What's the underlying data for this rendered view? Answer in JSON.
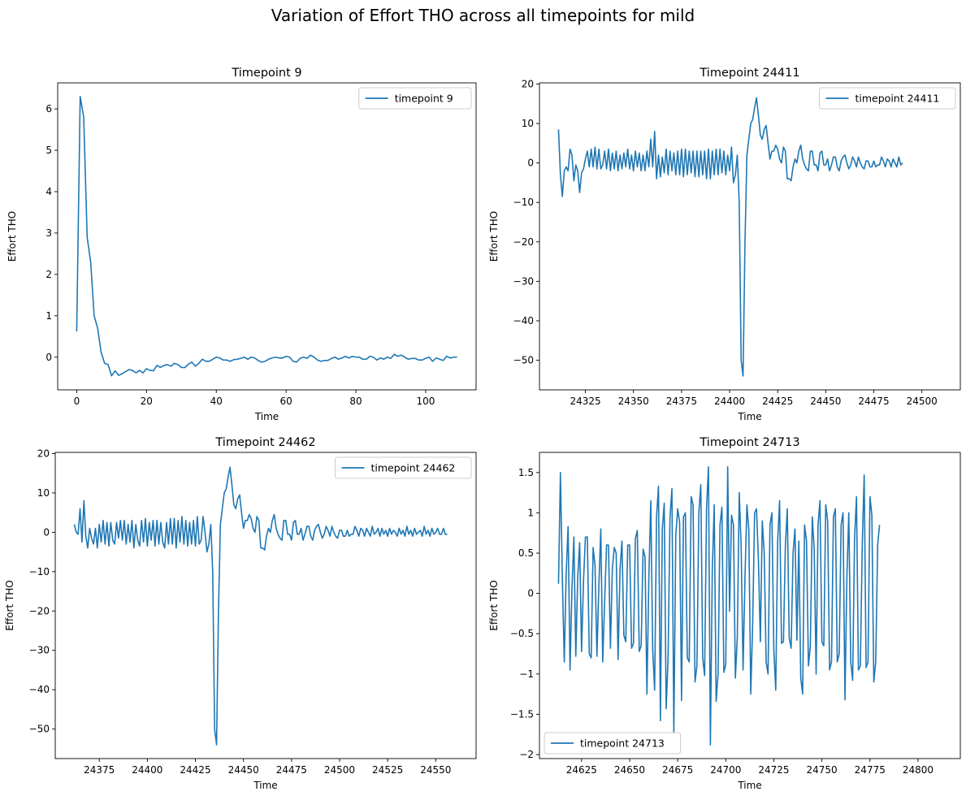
{
  "figure": {
    "title": "Variation of Effort THO across all timepoints for mild",
    "line_color": "#1f77b4"
  },
  "chart_data": [
    {
      "type": "line",
      "title": "Timepoint 9",
      "xlabel": "Time",
      "ylabel": "Effort THO",
      "legend": "upper right",
      "xlim": [
        -5.45,
        114.45
      ],
      "ylim": [
        -0.79,
        6.63
      ],
      "xticks": [
        0,
        20,
        40,
        60,
        80,
        100
      ],
      "yticks": [
        0,
        1,
        2,
        3,
        4,
        5,
        6
      ],
      "grid": false,
      "series": [
        {
          "name": "timepoint 9",
          "x_start": 0,
          "x_step": 1,
          "values": [
            0.62,
            6.3,
            5.8,
            2.9,
            2.3,
            1.0,
            0.7,
            0.12,
            -0.15,
            -0.18,
            -0.45,
            -0.33,
            -0.44,
            -0.4,
            -0.35,
            -0.3,
            -0.32,
            -0.38,
            -0.32,
            -0.38,
            -0.28,
            -0.32,
            -0.33,
            -0.2,
            -0.25,
            -0.2,
            -0.18,
            -0.22,
            -0.15,
            -0.18,
            -0.25,
            -0.25,
            -0.17,
            -0.12,
            -0.22,
            -0.15,
            -0.05,
            -0.1,
            -0.1,
            -0.05,
            0.0,
            -0.02,
            -0.07,
            -0.07,
            -0.1,
            -0.06,
            -0.05,
            -0.03,
            0.0,
            -0.05,
            0.0,
            -0.02,
            -0.08,
            -0.12,
            -0.1,
            -0.05,
            -0.02,
            0.0,
            -0.02,
            -0.02,
            0.02,
            0.0,
            -0.1,
            -0.12,
            -0.03,
            0.0,
            -0.03,
            0.05,
            0.0,
            -0.07,
            -0.1,
            -0.08,
            -0.08,
            -0.03,
            0.0,
            -0.05,
            -0.02,
            0.02,
            -0.02,
            0.02,
            0.0,
            0.0,
            -0.05,
            -0.05,
            0.02,
            0.0,
            -0.07,
            -0.02,
            -0.05,
            0.0,
            -0.03,
            0.07,
            0.02,
            0.05,
            0.0,
            -0.05,
            -0.03,
            -0.03,
            -0.07,
            -0.07,
            -0.03,
            0.0,
            -0.1,
            -0.02,
            -0.05,
            -0.08,
            0.02,
            -0.02,
            0.0,
            0.0
          ]
        }
      ]
    },
    {
      "type": "line",
      "title": "Timepoint 24411",
      "xlabel": "Time",
      "ylabel": "Effort THO",
      "legend": "upper right",
      "xlim": [
        24301.1,
        24520.0
      ],
      "ylim": [
        -57.5,
        20.3
      ],
      "xticks": [
        24325,
        24350,
        24375,
        24400,
        24425,
        24450,
        24475,
        24500
      ],
      "yticks": [
        -50,
        -40,
        -30,
        -20,
        -10,
        0,
        10,
        20
      ],
      "grid": false,
      "series": [
        {
          "name": "timepoint 24411",
          "x_start": 24311,
          "x_step": 1,
          "values": [
            8.5,
            -3,
            -8.5,
            -2,
            -1,
            -2,
            3.5,
            2,
            -4.5,
            -0.5,
            -2,
            -7.5,
            -2.5,
            -1.5,
            1,
            3,
            -1,
            3.5,
            -1,
            4,
            -1.5,
            3.5,
            -1.5,
            -0.5,
            3,
            -1.5,
            3.5,
            -2,
            2.5,
            -1.5,
            3,
            -2,
            2,
            -1.5,
            2.5,
            -1,
            3.5,
            -1.5,
            2,
            -2,
            3,
            -1,
            2.5,
            -2,
            2,
            -2,
            3,
            -1,
            6,
            -1,
            8,
            -4,
            2,
            -3.5,
            1.5,
            -2.5,
            3.5,
            -3,
            3,
            -2,
            2.5,
            -3,
            3,
            -3,
            3.5,
            -3.5,
            3.5,
            -3,
            3,
            -2.5,
            3,
            -3.5,
            3,
            -3.5,
            3,
            -3,
            3,
            -4,
            3.5,
            -4,
            3,
            -3,
            3.5,
            -3,
            3.5,
            -2.5,
            3,
            -3,
            2,
            -2,
            4,
            -5,
            -3,
            2,
            -10,
            -50,
            -54,
            -20,
            2,
            6,
            10,
            11,
            14,
            16.5,
            12,
            7,
            6,
            8.5,
            9.5,
            5,
            1,
            3,
            3,
            4.5,
            3.5,
            1,
            0,
            4,
            3,
            -4,
            -4,
            -4.5,
            -1,
            1,
            0,
            3,
            4.5,
            1,
            -0.5,
            -1.5,
            -2,
            3,
            3,
            -0.5,
            -0.5,
            -2,
            2.5,
            3,
            -0.5,
            -0.5,
            1,
            -2,
            -0.5,
            1.5,
            1.5,
            -1,
            -2,
            0.5,
            1.5,
            2,
            0,
            -1.5,
            -0.5,
            1.5,
            0.5,
            -1,
            1.5,
            0,
            -1,
            -1.5,
            0.5,
            0.5,
            -1,
            -1,
            0.5,
            -1,
            -0.5,
            -0.5,
            1.5,
            0.5,
            -1,
            1,
            0.5,
            -1,
            1,
            0,
            -1,
            1.5,
            -0.5,
            0
          ]
        }
      ]
    },
    {
      "type": "line",
      "title": "Timepoint 24462",
      "xlabel": "Time",
      "ylabel": "Effort THO",
      "legend": "upper right",
      "xlim": [
        24352.1,
        24571.0
      ],
      "ylim": [
        -57.5,
        20.3
      ],
      "xticks": [
        24375,
        24400,
        24425,
        24450,
        24475,
        24500,
        24525,
        24550
      ],
      "yticks": [
        -50,
        -40,
        -30,
        -20,
        -10,
        0,
        10,
        20
      ],
      "grid": false,
      "series": [
        {
          "name": "timepoint 24462",
          "x_start": 24362,
          "x_step": 1,
          "values": [
            2,
            0,
            -0.5,
            6,
            -2.5,
            8,
            -1,
            -4,
            1,
            -1.5,
            -3,
            1,
            -4,
            2,
            -2.5,
            3,
            -3,
            2.5,
            -3.5,
            2.5,
            -2,
            -3,
            2.5,
            -1.5,
            3,
            -2,
            3,
            -3,
            2,
            -2.5,
            3,
            -4,
            2,
            -2,
            -3.5,
            3,
            -2.5,
            3.5,
            -3.5,
            2.5,
            -2,
            3,
            -3.5,
            3,
            -3,
            2.5,
            -2.5,
            -4,
            2.5,
            -3,
            3.5,
            -3,
            3.5,
            -4,
            3,
            -2.5,
            4,
            -3,
            3,
            -3.5,
            2.5,
            -3,
            3,
            -3.5,
            4,
            -3,
            -2,
            4,
            0,
            -5,
            -3,
            2,
            -10,
            -50,
            -54,
            -20,
            2,
            6,
            10,
            11,
            14,
            16.5,
            12,
            7,
            6,
            8.5,
            9.5,
            5,
            1,
            3,
            3,
            4.5,
            3.5,
            1,
            0,
            4,
            3,
            -4,
            -4,
            -4.5,
            -1,
            1,
            0,
            3,
            4.5,
            1,
            -0.5,
            -1.5,
            -2,
            3,
            3,
            -0.5,
            -0.5,
            -2,
            2.5,
            3,
            -0.5,
            -0.5,
            1,
            -2,
            -0.5,
            1.5,
            1.5,
            -1,
            -2,
            0.5,
            1.5,
            2,
            0,
            -1.5,
            -0.5,
            1.5,
            0.5,
            -1,
            1.5,
            0,
            -1,
            -1.5,
            0.5,
            0.5,
            -1,
            -1,
            0.5,
            -1,
            -0.5,
            -0.5,
            1.5,
            0.5,
            -1,
            1,
            0.5,
            -1,
            1,
            0,
            -1,
            1.5,
            -0.5,
            0,
            1,
            -1,
            1,
            -0.5,
            0.5,
            -1,
            1,
            -0.5,
            0.5,
            0,
            -1,
            1,
            -0.5,
            0.5,
            -1,
            1.5,
            -0.5,
            0.5,
            -1,
            1,
            -0.5,
            0,
            0.5,
            -1,
            1.5,
            -0.5,
            0.5,
            -1,
            1,
            -0.5,
            0,
            1,
            -0.5,
            -0.5,
            1,
            -0.5,
            -0.5
          ]
        }
      ]
    },
    {
      "type": "line",
      "title": "Timepoint 24713",
      "xlabel": "Time",
      "ylabel": "Effort THO",
      "legend": "lower left",
      "xlim": [
        24603.1,
        24822.0
      ],
      "ylim": [
        -2.05,
        1.75
      ],
      "xticks": [
        24625,
        24650,
        24675,
        24700,
        24725,
        24750,
        24775,
        24800
      ],
      "yticks": [
        -2.0,
        -1.5,
        -1.0,
        -0.5,
        0.0,
        0.5,
        1.0,
        1.5
      ],
      "grid": false,
      "series": [
        {
          "name": "timepoint 24713",
          "x_start": 24613,
          "x_step": 1,
          "values": [
            0.12,
            1.5,
            0.2,
            -0.85,
            0.25,
            0.83,
            -0.95,
            0.05,
            0.7,
            -0.78,
            0.2,
            0.63,
            -0.72,
            0.15,
            0.7,
            0.7,
            -0.75,
            -0.8,
            0.57,
            0.35,
            -0.78,
            0.1,
            0.8,
            -0.85,
            -0.1,
            0.6,
            0.6,
            -0.68,
            0.3,
            0.57,
            0.5,
            -0.82,
            0.3,
            0.65,
            -0.52,
            -0.6,
            0.6,
            0.6,
            -0.68,
            -0.62,
            0.68,
            0.78,
            -0.72,
            -0.65,
            0.55,
            0.45,
            -1.25,
            0.2,
            1.15,
            -0.7,
            -1.2,
            0.95,
            1.33,
            -1.58,
            0.8,
            1.12,
            -1.43,
            -0.8,
            0.95,
            1.3,
            -1.75,
            0.72,
            1.05,
            0.88,
            -1.33,
            0.95,
            1.0,
            -0.8,
            -0.85,
            1.2,
            1.1,
            -1.1,
            -0.9,
            1.0,
            1.35,
            -0.8,
            -1.02,
            1.05,
            1.57,
            -1.88,
            0.3,
            1.1,
            -1.34,
            -1.0,
            0.85,
            1.07,
            -0.98,
            -0.88,
            1.57,
            -0.22,
            0.97,
            0.85,
            -1.05,
            -0.55,
            1.25,
            0.6,
            -0.95,
            0.2,
            1.1,
            0.78,
            -1.25,
            -0.38,
            1.0,
            1.05,
            0.4,
            -0.6,
            0.9,
            0.5,
            -0.85,
            -1.0,
            0.85,
            1.0,
            -0.7,
            -1.2,
            0.65,
            1.15,
            -0.62,
            -0.6,
            0.58,
            1.05,
            -0.55,
            -0.68,
            0.5,
            0.8,
            -0.58,
            0.65,
            -1.05,
            -1.25,
            0.85,
            0.65,
            -0.9,
            -0.65,
            0.95,
            0.55,
            -1.0,
            0.85,
            1.15,
            -0.6,
            -0.65,
            1.1,
            0.9,
            -0.95,
            -0.85,
            0.95,
            1.05,
            -0.85,
            -0.75,
            0.85,
            1.0,
            -1.32,
            0.2,
            1.0,
            -0.85,
            -1.08,
            0.68,
            1.2,
            -0.95,
            -0.9,
            0.6,
            1.47,
            -0.92,
            -0.85,
            1.2,
            0.97,
            -1.1,
            -0.85,
            0.6,
            0.85
          ]
        }
      ]
    }
  ]
}
